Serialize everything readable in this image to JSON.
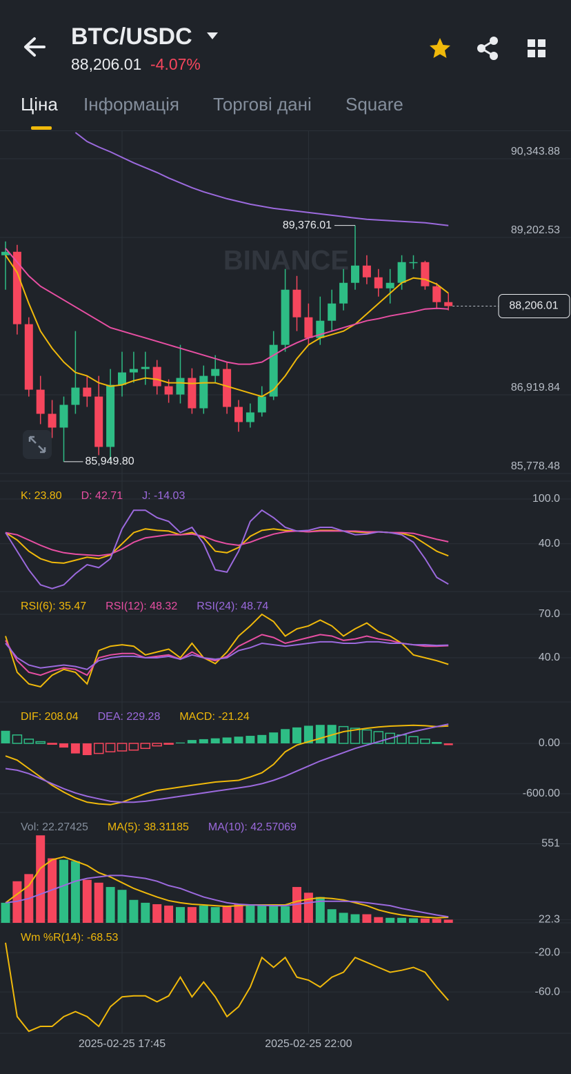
{
  "header": {
    "symbol": "BTC/USDC",
    "price": "88,206.01",
    "change": "-4.07%"
  },
  "tabs": [
    "Ціна",
    "Інформація",
    "Торгові дані",
    "Square"
  ],
  "chart_data": [
    {
      "type": "candlestick",
      "watermark": "BINANCE",
      "up_color": "#2ebd85",
      "down_color": "#f6465d",
      "categories": [
        null,
        null,
        null,
        null,
        null,
        null,
        null,
        null,
        null,
        null,
        "2025-02-25 17:45",
        null,
        null,
        null,
        null,
        null,
        null,
        null,
        null,
        null,
        null,
        null,
        null,
        null,
        null,
        null,
        "2025-02-25 22:00",
        null,
        null,
        null,
        null,
        null,
        null,
        null,
        null,
        null,
        null,
        null,
        null
      ],
      "open": [
        88944,
        88994,
        87944,
        86994,
        86644,
        86444,
        86774,
        87024,
        86894,
        86164,
        87064,
        87244,
        87294,
        87324,
        87044,
        86924,
        87164,
        86724,
        87194,
        87294,
        86744,
        86524,
        86664,
        86894,
        87644,
        88444,
        88044,
        87744,
        87994,
        88244,
        88544,
        88794,
        88624,
        88464,
        88544,
        88844,
        88844,
        88494,
        88264
      ],
      "high": [
        89144,
        89094,
        88044,
        87194,
        86844,
        86894,
        87844,
        87194,
        87194,
        87294,
        87544,
        87544,
        87544,
        87424,
        87144,
        87644,
        87304,
        87344,
        87494,
        87394,
        86844,
        86794,
        87044,
        87844,
        88744,
        88644,
        88244,
        88344,
        88444,
        88744,
        89376.01,
        88944,
        88744,
        88744,
        88944,
        88944,
        88864,
        88544,
        88394
      ],
      "low": [
        88444,
        87794,
        86894,
        86494,
        86294,
        85949.8,
        86644,
        86744,
        86044,
        85964,
        86894,
        87094,
        87064,
        86924,
        86804,
        86794,
        86644,
        86644,
        87094,
        86644,
        86384,
        86444,
        86604,
        86844,
        87544,
        87844,
        87644,
        87644,
        87844,
        88144,
        88444,
        88524,
        88344,
        88244,
        88444,
        88744,
        88444,
        88164,
        88144
      ],
      "close": [
        88994,
        87944,
        86994,
        86644,
        86444,
        86774,
        87024,
        86894,
        86164,
        87064,
        87244,
        87294,
        87324,
        87044,
        86924,
        87164,
        86724,
        87194,
        87294,
        86744,
        86524,
        86664,
        86894,
        87644,
        88444,
        88044,
        87744,
        87994,
        88244,
        88544,
        88794,
        88624,
        88464,
        88544,
        88844,
        88844,
        88494,
        88264,
        88206.01
      ],
      "series": [
        {
          "color": "#f0b90b",
          "values": [
            88944,
            88694,
            88244,
            87844,
            87594,
            87394,
            87244,
            87194,
            87094,
            87044,
            87064,
            87124,
            87164,
            87144,
            87094,
            87094,
            87084,
            87094,
            87094,
            87044,
            86994,
            86944,
            86894,
            86994,
            87194,
            87444,
            87644,
            87744,
            87794,
            87844,
            87944,
            88094,
            88244,
            88394,
            88544,
            88614,
            88594,
            88524,
            88394
          ]
        },
        {
          "color": "#e84fa3",
          "values": [
            89044,
            88844,
            88644,
            88494,
            88394,
            88294,
            88194,
            88094,
            87994,
            87894,
            87844,
            87794,
            87744,
            87694,
            87644,
            87594,
            87544,
            87494,
            87444,
            87394,
            87364,
            87364,
            87394,
            87494,
            87594,
            87674,
            87744,
            87794,
            87844,
            87894,
            87944,
            87994,
            88024,
            88064,
            88094,
            88124,
            88164,
            88174,
            88164
          ]
        },
        {
          "color": "#9c6ade",
          "values": [
            null,
            null,
            null,
            null,
            null,
            null,
            90724,
            90594,
            90514,
            90444,
            90364,
            90284,
            90214,
            90144,
            90064,
            89994,
            89924,
            89864,
            89814,
            89764,
            89724,
            89684,
            89654,
            89624,
            89604,
            89584,
            89564,
            89544,
            89524,
            89504,
            89484,
            89464,
            89454,
            89444,
            89434,
            89424,
            89414,
            89394,
            89374
          ]
        }
      ],
      "ylim": [
        85668,
        90744
      ],
      "yticks": [
        {
          "value": 90343.88,
          "label": "90,343.88"
        },
        {
          "value": 89202.53,
          "label": "89,202.53"
        },
        {
          "value": 86919.84,
          "label": "86,919.84"
        },
        {
          "value": 85778.48,
          "label": "85,778.48"
        }
      ],
      "last_price_label": "88,206.01",
      "max_label": "89,376.01",
      "min_label": "85,949.80"
    },
    {
      "type": "line",
      "ylim": [
        -24,
        124
      ],
      "yticks": [
        {
          "value": 100,
          "label": "100.0"
        },
        {
          "value": 40,
          "label": "40.0"
        }
      ],
      "series": [
        {
          "name": "K: 23.80",
          "color": "#f0b90b",
          "values": [
            55,
            45,
            30,
            20,
            15,
            14,
            18,
            22,
            20,
            25,
            40,
            55,
            60,
            58,
            57,
            52,
            55,
            48,
            30,
            28,
            35,
            50,
            58,
            60,
            58,
            57,
            56,
            58,
            58,
            57,
            56,
            55,
            56,
            55,
            54,
            50,
            40,
            30,
            23.8
          ]
        },
        {
          "name": "D: 42.71",
          "color": "#e84fa3",
          "values": [
            55,
            52,
            45,
            38,
            32,
            28,
            26,
            25,
            24,
            26,
            33,
            42,
            48,
            50,
            52,
            52,
            53,
            50,
            44,
            40,
            38,
            42,
            48,
            53,
            56,
            57,
            56,
            57,
            57,
            57,
            57,
            56,
            56,
            55,
            55,
            54,
            50,
            46,
            42.71
          ]
        },
        {
          "name": "J: -14.03",
          "color": "#9c6ade",
          "values": [
            55,
            30,
            5,
            -15,
            -20,
            -15,
            0,
            12,
            8,
            20,
            60,
            85,
            85,
            75,
            70,
            55,
            62,
            40,
            5,
            2,
            30,
            70,
            85,
            75,
            62,
            57,
            58,
            62,
            62,
            57,
            52,
            53,
            56,
            55,
            52,
            42,
            20,
            -5,
            -14.03
          ]
        }
      ]
    },
    {
      "type": "line",
      "ylim": [
        9.5,
        85.7
      ],
      "yticks": [
        {
          "value": 70,
          "label": "70.0"
        },
        {
          "value": 40,
          "label": "40.0"
        }
      ],
      "series": [
        {
          "name": "RSI(6): 35.47",
          "color": "#f0b90b",
          "values": [
            55,
            30,
            22,
            20,
            28,
            32,
            30,
            22,
            45,
            48,
            49,
            48,
            42,
            44,
            46,
            40,
            50,
            40,
            36,
            44,
            55,
            62,
            70,
            65,
            55,
            60,
            62,
            66,
            62,
            55,
            60,
            64,
            58,
            55,
            50,
            42,
            40,
            38,
            35.47
          ]
        },
        {
          "name": "RSI(12): 48.32",
          "color": "#e84fa3",
          "values": [
            52,
            38,
            30,
            28,
            31,
            33,
            32,
            28,
            40,
            42,
            43,
            43,
            40,
            41,
            42,
            39,
            44,
            40,
            38,
            41,
            48,
            52,
            56,
            54,
            50,
            52,
            54,
            56,
            55,
            52,
            53,
            55,
            53,
            52,
            50,
            49,
            48,
            48,
            48.32
          ]
        },
        {
          "name": "RSI(24): 48.74",
          "color": "#9c6ade",
          "values": [
            50,
            40,
            35,
            33,
            34,
            35,
            34,
            32,
            38,
            40,
            41,
            41,
            40,
            40,
            41,
            39,
            42,
            40,
            39,
            40,
            45,
            47,
            50,
            49,
            48,
            49,
            50,
            51,
            51,
            50,
            50,
            51,
            51,
            50,
            50,
            49,
            49,
            48.5,
            48.74
          ]
        }
      ]
    },
    {
      "type": "bar",
      "ylim": [
        -822,
        493
      ],
      "yticks": [
        {
          "value": 0,
          "label": "0.00"
        },
        {
          "value": -600,
          "label": "-600.00"
        }
      ],
      "series": [
        {
          "name": "DIF: 208.04",
          "color": "#f0b90b",
          "values": [
            -150,
            -200,
            -300,
            -400,
            -500,
            -580,
            -650,
            -700,
            -720,
            -730,
            -700,
            -650,
            -600,
            -560,
            -540,
            -520,
            -500,
            -480,
            -460,
            -450,
            -440,
            -400,
            -350,
            -250,
            -100,
            -20,
            20,
            60,
            100,
            140,
            160,
            180,
            195,
            205,
            210,
            215,
            210,
            200,
            208.04
          ]
        },
        {
          "name": "DEA: 229.28",
          "color": "#9c6ade",
          "values": [
            -300,
            -320,
            -360,
            -420,
            -480,
            -540,
            -590,
            -630,
            -660,
            -690,
            -700,
            -700,
            -690,
            -670,
            -650,
            -630,
            -610,
            -590,
            -570,
            -550,
            -530,
            -510,
            -480,
            -440,
            -390,
            -330,
            -270,
            -210,
            -160,
            -110,
            -60,
            -20,
            20,
            60,
            100,
            140,
            170,
            200,
            229.28
          ]
        },
        {
          "name": "MACD: -21.24",
          "type": "bar",
          "color": "#f0b90b",
          "up_color": "#2ebd85",
          "down_color": "#f6465d",
          "values": [
            150,
            100,
            50,
            20,
            -10,
            -50,
            -120,
            -140,
            -120,
            -100,
            -90,
            -80,
            -60,
            -30,
            -10,
            10,
            40,
            50,
            60,
            70,
            80,
            90,
            100,
            130,
            170,
            190,
            210,
            220,
            220,
            200,
            180,
            160,
            140,
            120,
            100,
            80,
            50,
            10,
            -21.24
          ]
        }
      ]
    },
    {
      "type": "bar",
      "ylim": [
        0,
        770
      ],
      "yticks": [
        551,
        22.3
      ],
      "series": [
        {
          "name": "Vol: 22.27425",
          "type": "bar",
          "color": "#848e9c",
          "values": [
            140,
            290,
            340,
            610,
            450,
            440,
            430,
            300,
            280,
            250,
            230,
            160,
            140,
            130,
            120,
            110,
            110,
            120,
            110,
            120,
            130,
            130,
            120,
            130,
            115,
            250,
            210,
            180,
            95,
            70,
            60,
            60,
            40,
            35,
            35,
            32,
            30,
            28,
            22.27425
          ]
        },
        {
          "name": "MA(5): 38.31185",
          "color": "#f0b90b",
          "values": [
            140,
            200,
            260,
            380,
            440,
            460,
            430,
            400,
            350,
            320,
            280,
            240,
            210,
            180,
            155,
            140,
            130,
            125,
            120,
            115,
            120,
            125,
            125,
            125,
            125,
            150,
            165,
            175,
            170,
            160,
            140,
            120,
            90,
            70,
            55,
            45,
            40,
            35,
            38.31185
          ]
        },
        {
          "name": "MA(10): 42.57069",
          "color": "#9c6ade",
          "values": [
            140,
            150,
            170,
            200,
            230,
            260,
            290,
            310,
            320,
            330,
            330,
            320,
            310,
            290,
            260,
            240,
            210,
            180,
            160,
            140,
            130,
            125,
            122,
            120,
            120,
            130,
            140,
            150,
            150,
            150,
            148,
            140,
            130,
            120,
            100,
            85,
            70,
            55,
            42.57069
          ]
        }
      ]
    },
    {
      "type": "line",
      "ylim": [
        -102,
        10.2
      ],
      "yticks": [
        {
          "value": -20,
          "label": "-20.0"
        },
        {
          "value": -60,
          "label": "-60.0"
        }
      ],
      "series": [
        {
          "name": "Wm %R(14): -68.53",
          "color": "#f0b90b",
          "values": [
            -10,
            -85,
            -100,
            -95,
            -95,
            -85,
            -80,
            -85,
            -95,
            -75,
            -65,
            -64,
            -64,
            -70,
            -64,
            -45,
            -65,
            -50,
            -65,
            -85,
            -75,
            -55,
            -25,
            -35,
            -25,
            -45,
            -48,
            -55,
            -45,
            -40,
            -25,
            -30,
            -35,
            -40,
            -38,
            -35,
            -40,
            -55,
            -68.53
          ]
        }
      ]
    }
  ]
}
